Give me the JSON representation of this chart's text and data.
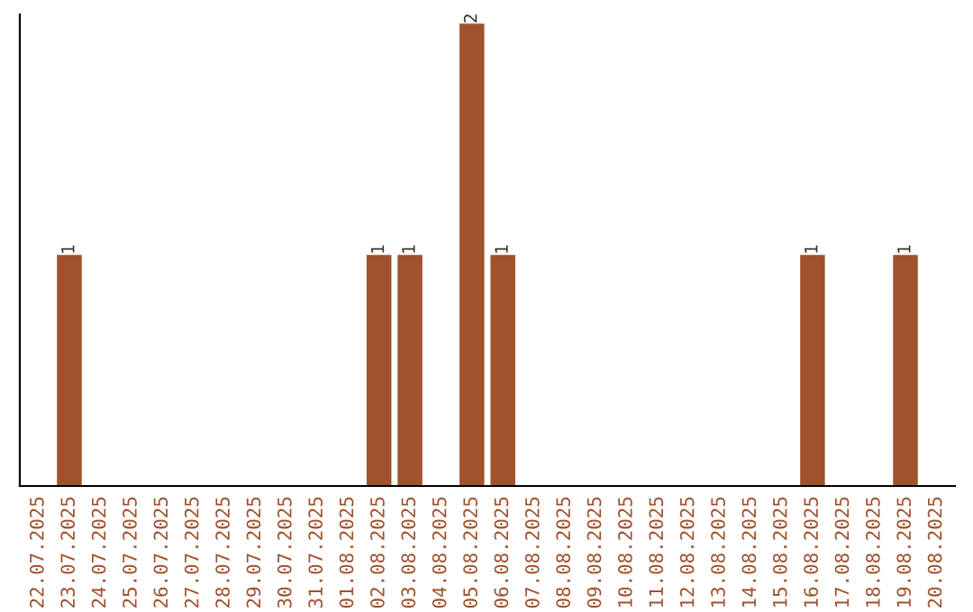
{
  "chart_data": {
    "type": "bar",
    "categories": [
      "22.07.2025",
      "23.07.2025",
      "24.07.2025",
      "25.07.2025",
      "26.07.2025",
      "27.07.2025",
      "28.07.2025",
      "29.07.2025",
      "30.07.2025",
      "31.07.2025",
      "01.08.2025",
      "02.08.2025",
      "03.08.2025",
      "04.08.2025",
      "05.08.2025",
      "06.08.2025",
      "07.08.2025",
      "08.08.2025",
      "09.08.2025",
      "10.08.2025",
      "11.08.2025",
      "12.08.2025",
      "13.08.2025",
      "14.08.2025",
      "15.08.2025",
      "16.08.2025",
      "17.08.2025",
      "18.08.2025",
      "19.08.2025",
      "20.08.2025"
    ],
    "values": [
      0,
      1,
      0,
      0,
      0,
      0,
      0,
      0,
      0,
      0,
      0,
      1,
      1,
      0,
      2,
      1,
      0,
      0,
      0,
      0,
      0,
      0,
      0,
      0,
      0,
      1,
      0,
      0,
      1,
      0
    ],
    "value_labels": [
      null,
      "1",
      null,
      null,
      null,
      null,
      null,
      null,
      null,
      null,
      null,
      "1",
      "1",
      null,
      "2",
      "1",
      null,
      null,
      null,
      null,
      null,
      null,
      null,
      null,
      null,
      "1",
      null,
      null,
      "1",
      null
    ],
    "color": "#a0522d",
    "ylim": [
      0,
      2.04
    ],
    "tick_labels": "x",
    "grid": false,
    "legend": false
  }
}
